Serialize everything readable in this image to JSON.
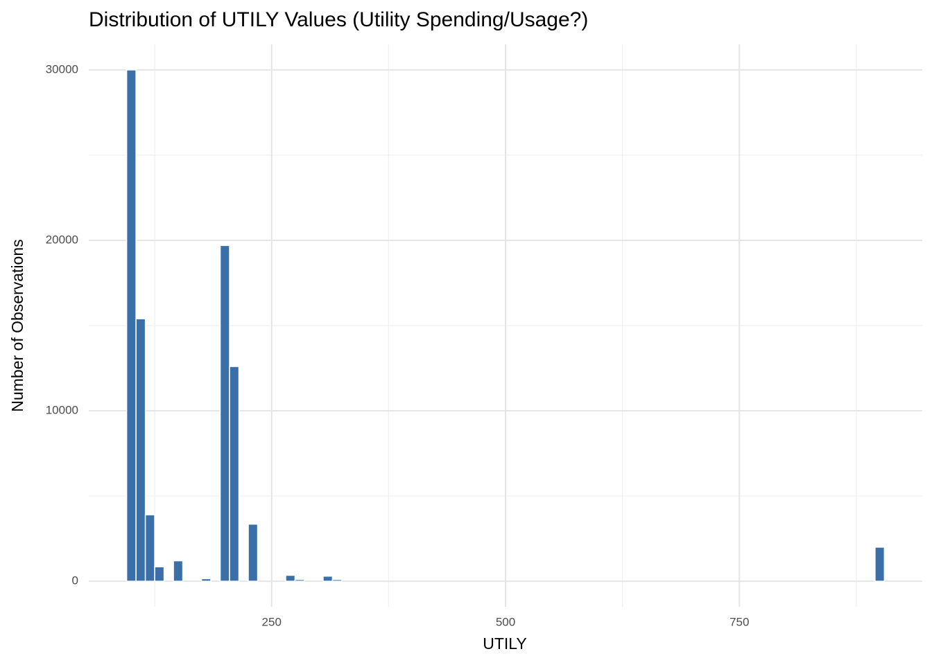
{
  "chart_data": {
    "type": "histogram",
    "title": "Distribution of UTILY Values (Utility Spending/Usage?)",
    "x_label": "UTILY",
    "y_label": "Number of Observations",
    "color": "#3b6fa8",
    "bins": [
      95,
      105,
      115,
      125,
      135,
      145,
      155,
      165,
      175,
      185,
      195,
      205,
      215,
      225,
      235,
      245,
      255,
      265,
      275,
      285,
      295,
      305,
      315,
      325,
      335,
      345,
      355,
      365,
      375,
      385,
      395,
      405,
      415,
      425,
      435,
      445,
      455,
      465,
      475,
      485,
      495,
      505,
      515,
      525,
      535,
      545,
      555,
      565,
      575,
      585,
      595,
      605,
      615,
      625,
      635,
      645,
      655,
      665,
      675,
      685,
      695,
      705,
      715,
      725,
      735,
      745,
      755,
      765,
      775,
      785,
      795,
      805,
      815,
      825,
      835,
      845,
      855,
      865,
      875,
      885,
      895,
      905
    ],
    "values": [
      30000,
      15400,
      3900,
      850,
      0,
      1200,
      0,
      0,
      150,
      0,
      19700,
      12600,
      0,
      3350,
      0,
      0,
      0,
      350,
      100,
      0,
      0,
      300,
      100,
      0,
      0,
      0,
      0,
      0,
      0,
      0,
      0,
      0,
      0,
      0,
      0,
      0,
      0,
      0,
      0,
      0,
      0,
      0,
      0,
      0,
      0,
      0,
      0,
      0,
      0,
      0,
      0,
      0,
      0,
      0,
      0,
      0,
      0,
      0,
      0,
      0,
      0,
      0,
      0,
      0,
      0,
      0,
      0,
      0,
      0,
      0,
      0,
      0,
      0,
      0,
      0,
      0,
      0,
      0,
      0,
      0,
      2000
    ],
    "xlim": [
      54.5,
      945.5
    ],
    "xticks": [
      250,
      500,
      750
    ],
    "xminor": [
      125,
      375,
      625,
      875
    ],
    "ylim": [
      -1500,
      31500
    ],
    "yticks": [
      0,
      10000,
      20000,
      30000
    ],
    "yminor": [
      5000,
      15000,
      25000
    ],
    "grid": true
  }
}
